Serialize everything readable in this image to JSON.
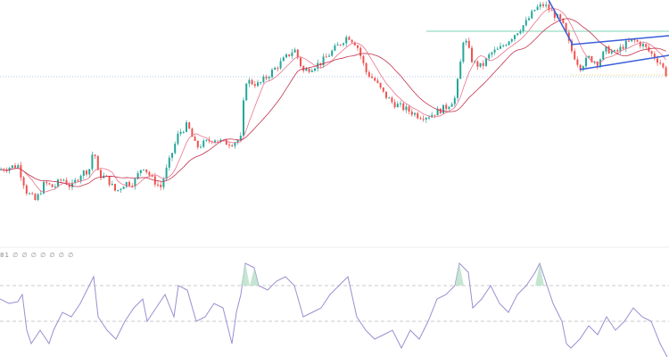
{
  "chart_data": {
    "type": "candlestick",
    "title": "",
    "price_path": {
      "x": [
        0,
        20,
        30,
        40,
        50,
        60,
        70,
        80,
        90,
        100,
        105,
        110,
        120,
        130,
        140,
        150,
        160,
        170,
        180,
        190,
        200,
        210,
        220,
        230,
        240,
        250,
        260,
        270,
        275,
        290,
        300,
        310,
        320,
        330,
        340,
        350,
        360,
        370,
        380,
        390,
        400,
        410,
        420,
        430,
        440,
        450,
        460,
        470,
        480,
        490,
        500,
        510,
        515,
        520,
        530,
        540,
        550,
        560,
        570,
        580,
        590,
        600,
        610,
        620,
        630,
        640,
        650,
        660,
        670,
        680,
        690,
        700,
        710,
        720,
        730,
        740,
        748
      ],
      "close": [
        110,
        115,
        85,
        75,
        95,
        90,
        100,
        90,
        105,
        110,
        135,
        105,
        100,
        85,
        95,
        95,
        115,
        100,
        90,
        120,
        150,
        160,
        135,
        140,
        145,
        140,
        140,
        145,
        210,
        205,
        215,
        225,
        235,
        245,
        220,
        225,
        230,
        240,
        250,
        260,
        250,
        220,
        210,
        195,
        185,
        180,
        175,
        170,
        170,
        175,
        180,
        190,
        220,
        260,
        230,
        225,
        240,
        245,
        255,
        265,
        275,
        290,
        295,
        285,
        275,
        245,
        225,
        235,
        230,
        245,
        240,
        250,
        255,
        250,
        240,
        230,
        215
      ]
    },
    "moving_averages": [
      {
        "color": "#e8738c"
      },
      {
        "color": "#c2334f"
      }
    ],
    "candle_colors": {
      "up": "#26a69a",
      "down": "#ef5350"
    },
    "drawings": {
      "resistance_color": "#7fd3b4",
      "support_color": "#9bb6e6",
      "trendline_color": "#3b5fd9",
      "marker_color": "#e6d36a"
    },
    "rsi": {
      "label": "81 ∅ ∅ ∅ ∅ ∅ ∅ ∅",
      "color": "#9b8fd0",
      "levels": [
        70,
        30
      ],
      "x": [
        0,
        10,
        20,
        25,
        30,
        35,
        45,
        55,
        60,
        70,
        80,
        90,
        100,
        105,
        110,
        120,
        130,
        140,
        150,
        160,
        165,
        175,
        185,
        195,
        200,
        210,
        220,
        230,
        240,
        250,
        260,
        265,
        270,
        275,
        285,
        290,
        300,
        310,
        320,
        330,
        340,
        350,
        360,
        370,
        380,
        390,
        400,
        410,
        420,
        430,
        440,
        450,
        460,
        470,
        480,
        490,
        500,
        510,
        515,
        525,
        530,
        540,
        550,
        560,
        570,
        580,
        590,
        600,
        605,
        610,
        620,
        630,
        635,
        640,
        650,
        660,
        670,
        680,
        690,
        700,
        710,
        720,
        730,
        740,
        748
      ],
      "values": [
        55,
        50,
        52,
        60,
        20,
        5,
        20,
        5,
        20,
        40,
        35,
        50,
        70,
        80,
        35,
        20,
        10,
        30,
        45,
        55,
        30,
        45,
        60,
        35,
        70,
        65,
        30,
        35,
        50,
        45,
        5,
        40,
        60,
        95,
        90,
        70,
        65,
        75,
        80,
        70,
        35,
        40,
        45,
        60,
        70,
        80,
        35,
        20,
        10,
        15,
        20,
        0,
        20,
        10,
        30,
        55,
        60,
        70,
        95,
        85,
        45,
        55,
        70,
        50,
        40,
        60,
        70,
        85,
        95,
        80,
        50,
        30,
        5,
        0,
        10,
        25,
        15,
        35,
        20,
        30,
        45,
        35,
        30,
        5,
        -10
      ]
    }
  }
}
